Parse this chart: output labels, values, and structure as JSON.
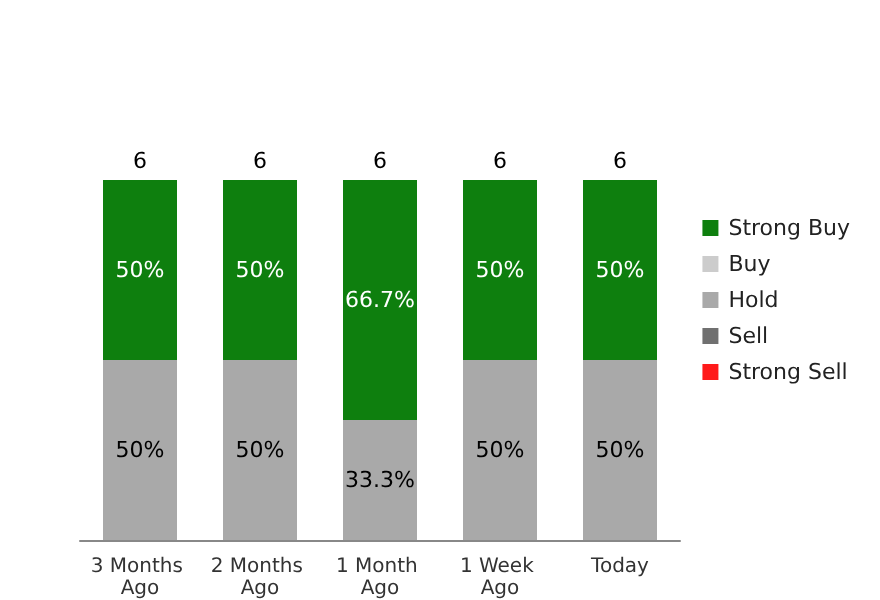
{
  "chart_data": {
    "type": "bar",
    "stacked": true,
    "categories": [
      "3 Months Ago",
      "2 Months Ago",
      "1 Month Ago",
      "1 Week Ago",
      "Today"
    ],
    "series": [
      {
        "name": "Strong Sell",
        "color": "#ff1a1a",
        "values": [
          null,
          null,
          null,
          null,
          null
        ]
      },
      {
        "name": "Sell",
        "color": "#707070",
        "values": [
          null,
          null,
          null,
          null,
          null
        ]
      },
      {
        "name": "Hold",
        "color": "#a9a9a9",
        "values": [
          50,
          50,
          33.3,
          50,
          50
        ],
        "value_labels": [
          "50%",
          "50%",
          "33.3%",
          "50%",
          "50%"
        ]
      },
      {
        "name": "Buy",
        "color": "#cccccc",
        "values": [
          null,
          null,
          null,
          null,
          null
        ]
      },
      {
        "name": "Strong Buy",
        "color": "#0e7f0e",
        "values": [
          50,
          50,
          66.7,
          50,
          50
        ],
        "value_labels": [
          "50%",
          "50%",
          "66.7%",
          "50%",
          "50%"
        ]
      }
    ],
    "annotations": [
      {
        "text": "6",
        "x": "3 Months Ago",
        "y": 100
      },
      {
        "text": "6",
        "x": "2 Months Ago",
        "y": 100
      },
      {
        "text": "6",
        "x": "1 Month Ago",
        "y": 100
      },
      {
        "text": "6",
        "x": "1 Week Ago",
        "y": 100
      },
      {
        "text": "6",
        "x": "Today",
        "y": 100
      }
    ],
    "legend": "right"
  }
}
